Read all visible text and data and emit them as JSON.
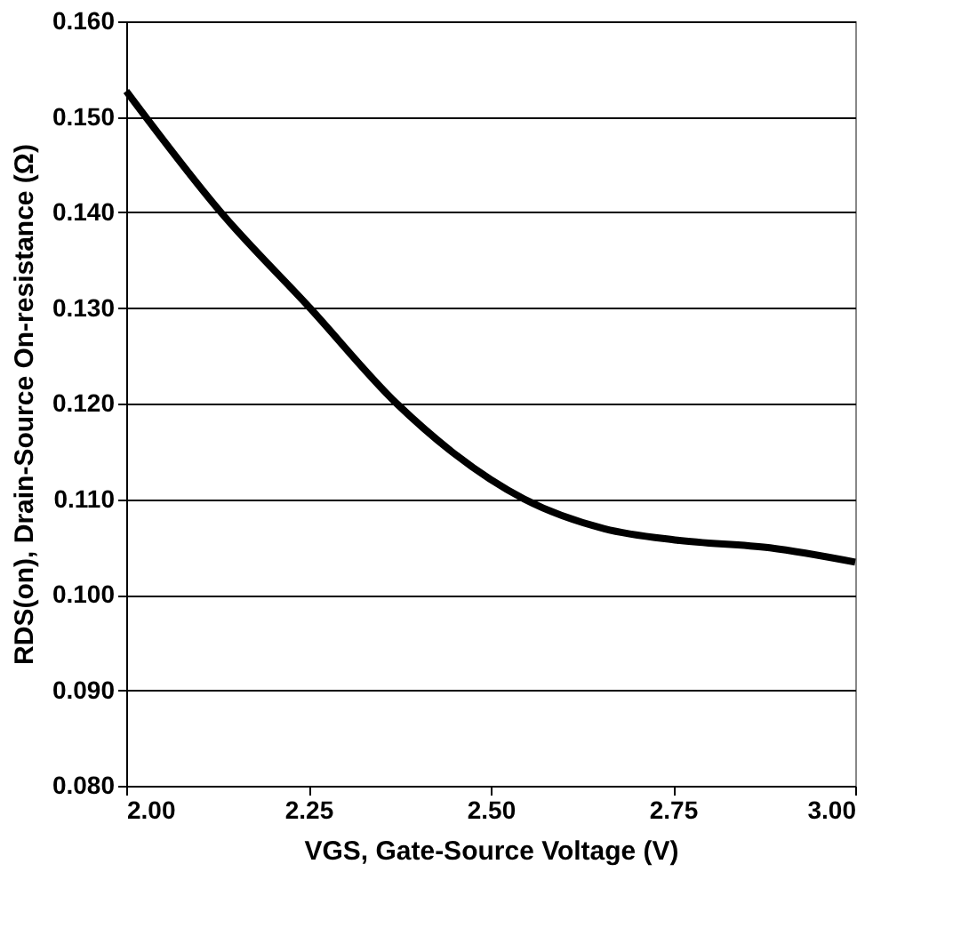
{
  "chart_data": {
    "type": "line",
    "xlabel": "VGS, Gate-Source Voltage (V)",
    "ylabel": "RDS(on), Drain-Source On-resistance (Ω)",
    "x": [
      2.0,
      2.13,
      2.252,
      2.371,
      2.546,
      2.656,
      2.756,
      2.883,
      3.0
    ],
    "series": [
      {
        "color": "#000000",
        "values": [
          0.1527,
          0.14,
          0.13,
          0.12,
          0.11,
          0.1069,
          0.1057,
          0.1049,
          0.1034
        ]
      }
    ],
    "xlim": [
      2.0,
      3.0
    ],
    "xticks": [
      {
        "value": 2.0,
        "label": "2.00"
      },
      {
        "value": 2.25,
        "label": "2.25"
      },
      {
        "value": 2.5,
        "label": "2.50"
      },
      {
        "value": 2.75,
        "label": "2.75"
      },
      {
        "value": 3.0,
        "label": "3.00"
      }
    ],
    "ylim": [
      0.08,
      0.16
    ],
    "yticks": [
      {
        "value": 0.08,
        "label": "0.080"
      },
      {
        "value": 0.09,
        "label": "0.090"
      },
      {
        "value": 0.1,
        "label": "0.100"
      },
      {
        "value": 0.11,
        "label": "0.110"
      },
      {
        "value": 0.12,
        "label": "0.120"
      },
      {
        "value": 0.13,
        "label": "0.130"
      },
      {
        "value": 0.14,
        "label": "0.140"
      },
      {
        "value": 0.15,
        "label": "0.150"
      },
      {
        "value": 0.16,
        "label": "0.160"
      }
    ],
    "grid": "y",
    "marker": "none",
    "line_style": "solid"
  }
}
